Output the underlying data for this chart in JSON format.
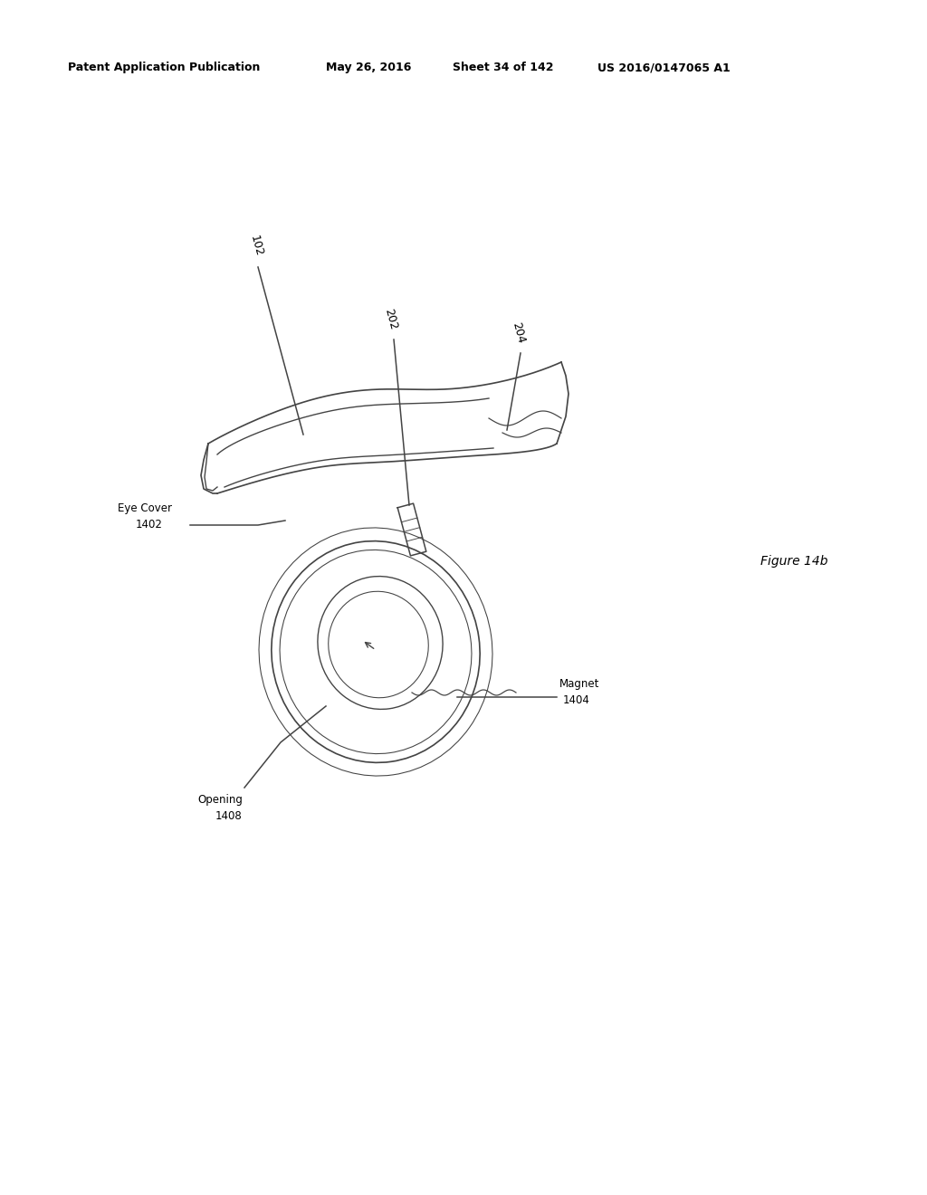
{
  "background_color": "#ffffff",
  "header_text": "Patent Application Publication",
  "header_date": "May 26, 2016",
  "header_sheet": "Sheet 34 of 142",
  "header_patent": "US 2016/0147065 A1",
  "figure_label": "Figure 14b",
  "line_color": "#444444",
  "text_color": "#000000",
  "lw": 1.1
}
